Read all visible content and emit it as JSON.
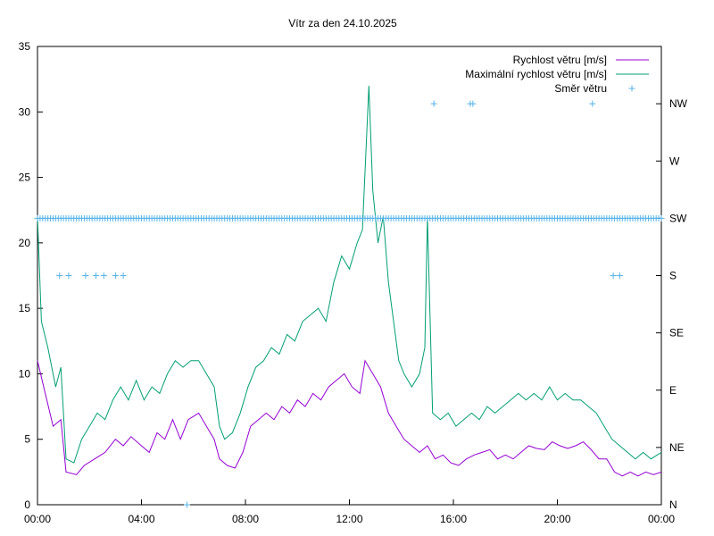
{
  "chart_data": {
    "type": "line",
    "title": "Vítr za den 24.10.2025",
    "x_ticks": [
      "00:00",
      "04:00",
      "08:00",
      "12:00",
      "16:00",
      "20:00",
      "00:00"
    ],
    "x_range_hours": [
      0,
      24
    ],
    "y_left": {
      "range": [
        0,
        35
      ],
      "ticks": [
        "0",
        "5",
        "10",
        "15",
        "20",
        "25",
        "30",
        "35"
      ]
    },
    "y_right": {
      "range": [
        0,
        8
      ],
      "ticks": [
        "N",
        "NE",
        "E",
        "SE",
        "S",
        "SW",
        "W",
        "NW"
      ]
    },
    "colors": {
      "speed": "#9400d3",
      "gust": "#009e73",
      "direction": "#56b4e9"
    },
    "series": [
      {
        "name": "Rychlost větru [m/s]",
        "key": "speed",
        "points": [
          [
            0,
            11
          ],
          [
            0.3,
            8.5
          ],
          [
            0.6,
            6
          ],
          [
            0.9,
            6.5
          ],
          [
            1.1,
            2.5
          ],
          [
            1.5,
            2.3
          ],
          [
            1.8,
            3
          ],
          [
            2.2,
            3.5
          ],
          [
            2.6,
            4
          ],
          [
            3,
            5
          ],
          [
            3.3,
            4.5
          ],
          [
            3.6,
            5.2
          ],
          [
            4,
            4.5
          ],
          [
            4.3,
            4
          ],
          [
            4.6,
            5.5
          ],
          [
            4.9,
            5
          ],
          [
            5.2,
            6.5
          ],
          [
            5.5,
            5
          ],
          [
            5.8,
            6.5
          ],
          [
            6.2,
            7
          ],
          [
            6.5,
            6
          ],
          [
            6.8,
            5
          ],
          [
            7,
            3.5
          ],
          [
            7.3,
            3
          ],
          [
            7.6,
            2.8
          ],
          [
            7.9,
            4
          ],
          [
            8.2,
            6
          ],
          [
            8.5,
            6.5
          ],
          [
            8.8,
            7
          ],
          [
            9.1,
            6.5
          ],
          [
            9.4,
            7.5
          ],
          [
            9.7,
            7
          ],
          [
            10,
            8
          ],
          [
            10.3,
            7.5
          ],
          [
            10.6,
            8.5
          ],
          [
            10.9,
            8
          ],
          [
            11.2,
            9
          ],
          [
            11.5,
            9.5
          ],
          [
            11.8,
            10
          ],
          [
            12.1,
            9
          ],
          [
            12.4,
            8.5
          ],
          [
            12.6,
            11
          ],
          [
            12.9,
            10
          ],
          [
            13.2,
            9
          ],
          [
            13.5,
            7
          ],
          [
            13.8,
            6
          ],
          [
            14.1,
            5
          ],
          [
            14.4,
            4.5
          ],
          [
            14.7,
            4
          ],
          [
            15,
            4.5
          ],
          [
            15.3,
            3.5
          ],
          [
            15.6,
            3.8
          ],
          [
            15.9,
            3.2
          ],
          [
            16.2,
            3
          ],
          [
            16.5,
            3.5
          ],
          [
            16.8,
            3.8
          ],
          [
            17.1,
            4
          ],
          [
            17.4,
            4.2
          ],
          [
            17.7,
            3.5
          ],
          [
            18,
            3.8
          ],
          [
            18.3,
            3.5
          ],
          [
            18.6,
            4
          ],
          [
            18.9,
            4.5
          ],
          [
            19.2,
            4.3
          ],
          [
            19.5,
            4.2
          ],
          [
            19.8,
            4.8
          ],
          [
            20.1,
            4.5
          ],
          [
            20.4,
            4.3
          ],
          [
            20.7,
            4.5
          ],
          [
            21,
            4.8
          ],
          [
            21.3,
            4.2
          ],
          [
            21.6,
            3.5
          ],
          [
            21.9,
            3.5
          ],
          [
            22.2,
            2.5
          ],
          [
            22.5,
            2.2
          ],
          [
            22.8,
            2.5
          ],
          [
            23.1,
            2.2
          ],
          [
            23.4,
            2.5
          ],
          [
            23.7,
            2.3
          ],
          [
            24,
            2.5
          ]
        ]
      },
      {
        "name": "Maximální rychlost větru [m/s]",
        "key": "gust",
        "points": [
          [
            0,
            22
          ],
          [
            0.15,
            14
          ],
          [
            0.4,
            12
          ],
          [
            0.7,
            9
          ],
          [
            0.9,
            10.5
          ],
          [
            1.1,
            3.5
          ],
          [
            1.4,
            3.2
          ],
          [
            1.7,
            5
          ],
          [
            2,
            6
          ],
          [
            2.3,
            7
          ],
          [
            2.6,
            6.5
          ],
          [
            2.9,
            8
          ],
          [
            3.2,
            9
          ],
          [
            3.5,
            8
          ],
          [
            3.8,
            9.5
          ],
          [
            4.1,
            8
          ],
          [
            4.4,
            9
          ],
          [
            4.7,
            8.5
          ],
          [
            5,
            10
          ],
          [
            5.3,
            11
          ],
          [
            5.6,
            10.5
          ],
          [
            5.9,
            11
          ],
          [
            6.2,
            11
          ],
          [
            6.5,
            10
          ],
          [
            6.8,
            9
          ],
          [
            7,
            6
          ],
          [
            7.2,
            5
          ],
          [
            7.5,
            5.5
          ],
          [
            7.8,
            7
          ],
          [
            8.1,
            9
          ],
          [
            8.4,
            10.5
          ],
          [
            8.7,
            11
          ],
          [
            9,
            12
          ],
          [
            9.3,
            11.5
          ],
          [
            9.6,
            13
          ],
          [
            9.9,
            12.5
          ],
          [
            10.2,
            14
          ],
          [
            10.5,
            14.5
          ],
          [
            10.8,
            15
          ],
          [
            11.1,
            14
          ],
          [
            11.4,
            17
          ],
          [
            11.7,
            19
          ],
          [
            12,
            18
          ],
          [
            12.3,
            20
          ],
          [
            12.5,
            21
          ],
          [
            12.75,
            32
          ],
          [
            12.9,
            24
          ],
          [
            13.1,
            20
          ],
          [
            13.3,
            22
          ],
          [
            13.5,
            17
          ],
          [
            13.7,
            14
          ],
          [
            13.9,
            11
          ],
          [
            14.1,
            10
          ],
          [
            14.4,
            9
          ],
          [
            14.7,
            10
          ],
          [
            14.9,
            12
          ],
          [
            15,
            22
          ],
          [
            15.2,
            7
          ],
          [
            15.5,
            6.5
          ],
          [
            15.8,
            7
          ],
          [
            16.1,
            6
          ],
          [
            16.4,
            6.5
          ],
          [
            16.7,
            7
          ],
          [
            17,
            6.5
          ],
          [
            17.3,
            7.5
          ],
          [
            17.6,
            7
          ],
          [
            17.9,
            7.5
          ],
          [
            18.2,
            8
          ],
          [
            18.5,
            8.5
          ],
          [
            18.8,
            8
          ],
          [
            19.1,
            8.5
          ],
          [
            19.4,
            8
          ],
          [
            19.7,
            9
          ],
          [
            20,
            8
          ],
          [
            20.3,
            8.5
          ],
          [
            20.6,
            8
          ],
          [
            20.9,
            8
          ],
          [
            21.2,
            7.5
          ],
          [
            21.5,
            7
          ],
          [
            21.8,
            6
          ],
          [
            22.1,
            5
          ],
          [
            22.4,
            4.5
          ],
          [
            22.7,
            4
          ],
          [
            23,
            3.5
          ],
          [
            23.3,
            4
          ],
          [
            23.6,
            3.5
          ],
          [
            24,
            4
          ]
        ]
      },
      {
        "name": "Směr větru",
        "key": "direction",
        "segments": [
          {
            "from_h": 0,
            "to_h": 24,
            "step_h": 0.1,
            "dir": 5
          }
        ],
        "extra_points": [
          [
            0.85,
            4
          ],
          [
            1.2,
            4
          ],
          [
            1.85,
            4
          ],
          [
            2.25,
            4
          ],
          [
            2.55,
            4
          ],
          [
            3.0,
            4
          ],
          [
            3.3,
            4
          ],
          [
            5.75,
            0
          ],
          [
            15.25,
            7
          ],
          [
            16.65,
            7
          ],
          [
            16.75,
            7
          ],
          [
            21.35,
            7
          ],
          [
            22.15,
            4
          ],
          [
            22.4,
            4
          ]
        ]
      }
    ]
  }
}
